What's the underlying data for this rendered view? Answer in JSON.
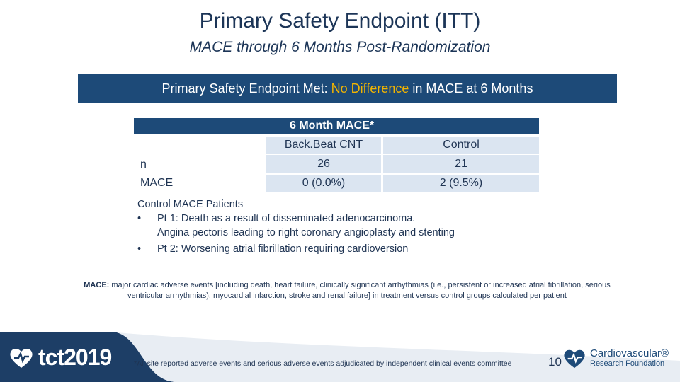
{
  "title": "Primary Safety Endpoint (ITT)",
  "subtitle": "MACE through 6 Months Post-Randomization",
  "banner": {
    "before": "Primary Safety Endpoint Met:",
    "highlight": "No Difference",
    "after": "in MACE at 6 Months"
  },
  "table": {
    "header": "6 Month MACE*",
    "columns": [
      "Back.Beat CNT",
      "Control"
    ],
    "rows": [
      {
        "label": "n",
        "values": [
          "26",
          "21"
        ]
      },
      {
        "label": "MACE",
        "values": [
          "0 (0.0%)",
          "2 (9.5%)"
        ]
      }
    ]
  },
  "patients": {
    "heading": "Control MACE Patients",
    "items": [
      {
        "bullet": "•",
        "line1": "Pt 1: Death as a result of disseminated adenocarcinoma.",
        "line2": "Angina pectoris leading to right coronary angioplasty and stenting"
      },
      {
        "bullet": "•",
        "line1": "Pt 2: Worsening atrial fibrillation requiring cardioversion"
      }
    ]
  },
  "definition": {
    "term": "MACE:",
    "text": "major cardiac adverse events [including death, heart failure, clinically significant arrhythmias (i.e., persistent or increased atrial fibrillation, serious ventricular arrhythmias), myocardial infarction, stroke and renal failure] in treatment versus control groups calculated per patient"
  },
  "footer": {
    "logo": "tct2019",
    "footnote": "*All site reported adverse events and serious adverse events adjudicated by independent clinical events committee",
    "page": "10",
    "crf_line1": "Cardiovascular®",
    "crf_line2": "Research Foundation"
  },
  "colors": {
    "navy": "#1d4a78",
    "highlight": "#f3b500",
    "cell": "#dbe5f1",
    "text": "#1f3453"
  },
  "icons": [
    "tct-heart-logo-icon",
    "crf-heart-logo-icon"
  ]
}
